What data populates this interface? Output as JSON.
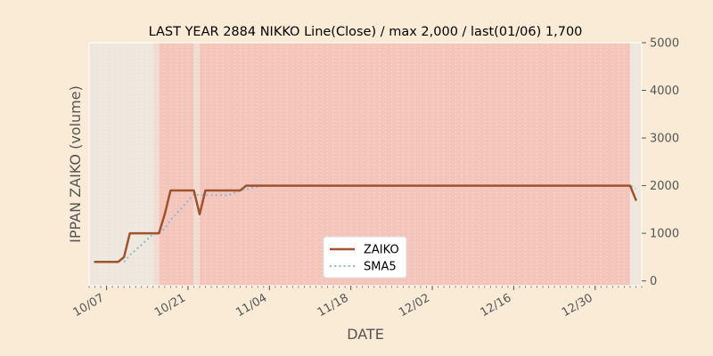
{
  "chart_data": {
    "type": "line",
    "title": "LAST YEAR 2884 NIKKO Line(Close) / max 2,000 / last(01/06) 1,700",
    "xlabel": "DATE",
    "ylabel": "IPPAN ZAIKO (volume)",
    "ylim": [
      -100,
      5000
    ],
    "y_ticks": [
      "0",
      "1000",
      "2000",
      "3000",
      "4000",
      "5000"
    ],
    "y_tick_values": [
      0,
      1000,
      2000,
      3000,
      4000,
      5000
    ],
    "x_range": [
      "10/04",
      "01/07"
    ],
    "x_ticks": [
      "10/07",
      "10/21",
      "11/04",
      "11/18",
      "12/02",
      "12/16",
      "12/30"
    ],
    "x_tick_dates": [
      "10/07",
      "10/21",
      "11/04",
      "11/18",
      "12/02",
      "12/16",
      "12/30"
    ],
    "legend_position": "lower-center",
    "series": [
      {
        "name": "ZAIKO",
        "style": "solid",
        "color": "#a0522d",
        "points": [
          [
            "10/05",
            400
          ],
          [
            "10/07",
            400
          ],
          [
            "10/09",
            400
          ],
          [
            "10/10",
            500
          ],
          [
            "10/11",
            1000
          ],
          [
            "10/13",
            1000
          ],
          [
            "10/15",
            1000
          ],
          [
            "10/16",
            1000
          ],
          [
            "10/17",
            1400
          ],
          [
            "10/18",
            1900
          ],
          [
            "10/20",
            1900
          ],
          [
            "10/22",
            1900
          ],
          [
            "10/23",
            1400
          ],
          [
            "10/24",
            1900
          ],
          [
            "10/26",
            1900
          ],
          [
            "10/28",
            1900
          ],
          [
            "10/30",
            1900
          ],
          [
            "10/31",
            2000
          ],
          [
            "11/10",
            2000
          ],
          [
            "11/20",
            2000
          ],
          [
            "12/01",
            2000
          ],
          [
            "12/15",
            2000
          ],
          [
            "12/31",
            2000
          ],
          [
            "01/05",
            2000
          ],
          [
            "01/06",
            1700
          ]
        ]
      },
      {
        "name": "SMA5",
        "style": "dotted",
        "color": "#8fb8d8",
        "points": [
          [
            "10/10",
            400
          ],
          [
            "10/11",
            540
          ],
          [
            "10/13",
            760
          ],
          [
            "10/15",
            980
          ],
          [
            "10/16",
            1000
          ],
          [
            "10/17",
            1100
          ],
          [
            "10/18",
            1280
          ],
          [
            "10/20",
            1540
          ],
          [
            "10/22",
            1820
          ],
          [
            "10/23",
            1800
          ],
          [
            "10/24",
            1800
          ],
          [
            "10/26",
            1800
          ],
          [
            "10/28",
            1800
          ],
          [
            "10/30",
            1900
          ],
          [
            "10/31",
            1920
          ],
          [
            "11/01",
            1950
          ],
          [
            "11/03",
            2000
          ],
          [
            "11/10",
            2000
          ],
          [
            "11/20",
            2000
          ],
          [
            "12/01",
            2000
          ],
          [
            "12/15",
            2000
          ],
          [
            "12/31",
            2000
          ],
          [
            "01/05",
            2000
          ],
          [
            "01/06",
            1940
          ]
        ]
      }
    ],
    "shaded_ranges": [
      {
        "from": "10/04",
        "to": "10/15",
        "color": "#ede7de"
      },
      {
        "from": "10/15",
        "to": "10/16",
        "color": "#f0dcd2"
      },
      {
        "from": "10/16",
        "to": "10/22",
        "color": "#f4c6bb"
      },
      {
        "from": "10/22",
        "to": "10/23",
        "color": "#f0dcd2"
      },
      {
        "from": "10/23",
        "to": "01/05",
        "color": "#f4c6bb"
      },
      {
        "from": "01/05",
        "to": "01/07",
        "color": "#ede7de"
      }
    ]
  }
}
